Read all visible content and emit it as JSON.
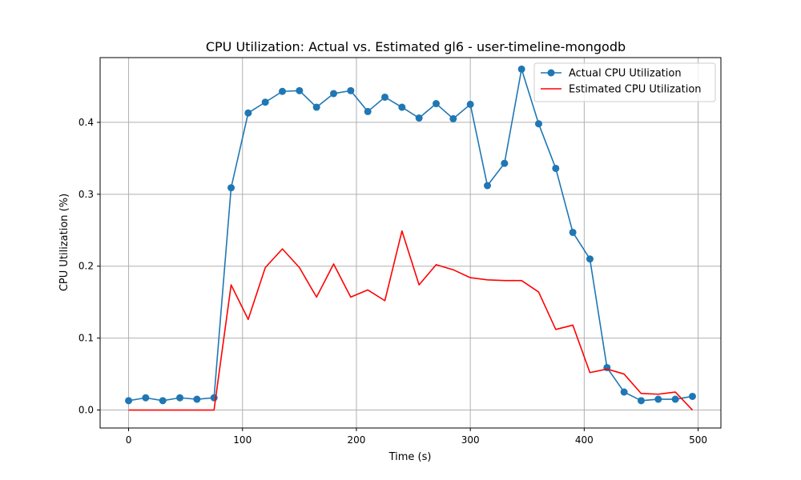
{
  "chart_data": {
    "type": "line",
    "title": "CPU Utilization: Actual vs. Estimated gl6 - user-timeline-mongodb",
    "xlabel": "Time (s)",
    "ylabel": "CPU Utilization (%)",
    "xlim": [
      -25,
      520
    ],
    "ylim": [
      -0.025,
      0.49
    ],
    "xticks": [
      0,
      100,
      200,
      300,
      400,
      500
    ],
    "yticks": [
      0.0,
      0.1,
      0.2,
      0.3,
      0.4
    ],
    "ytick_labels": [
      "0.0",
      "0.1",
      "0.2",
      "0.3",
      "0.4"
    ],
    "grid": true,
    "legend_position": "top-right",
    "x": [
      0,
      15,
      30,
      45,
      60,
      75,
      90,
      105,
      120,
      135,
      150,
      165,
      180,
      195,
      210,
      225,
      240,
      255,
      270,
      285,
      300,
      315,
      330,
      345,
      360,
      375,
      390,
      405,
      420,
      435,
      450,
      465,
      480,
      495
    ],
    "series": [
      {
        "name": "Actual CPU Utilization",
        "color": "#1f77b4",
        "marker": "circle",
        "values": [
          0.013,
          0.017,
          0.013,
          0.017,
          0.015,
          0.017,
          0.309,
          0.413,
          0.428,
          0.443,
          0.444,
          0.421,
          0.44,
          0.444,
          0.415,
          0.435,
          0.421,
          0.406,
          0.426,
          0.405,
          0.425,
          0.312,
          0.343,
          0.474,
          0.398,
          0.336,
          0.247,
          0.21,
          0.059,
          0.025,
          0.013,
          0.015,
          0.015,
          0.019
        ]
      },
      {
        "name": "Estimated CPU Utilization",
        "color": "#ff0000",
        "marker": "none",
        "values": [
          0.0,
          0.0,
          0.0,
          0.0,
          0.0,
          0.0,
          0.174,
          0.126,
          0.198,
          0.224,
          0.198,
          0.157,
          0.203,
          0.157,
          0.167,
          0.152,
          0.249,
          0.174,
          0.202,
          0.195,
          0.184,
          0.181,
          0.18,
          0.18,
          0.164,
          0.112,
          0.118,
          0.052,
          0.057,
          0.05,
          0.023,
          0.022,
          0.025,
          0.0
        ]
      }
    ]
  }
}
